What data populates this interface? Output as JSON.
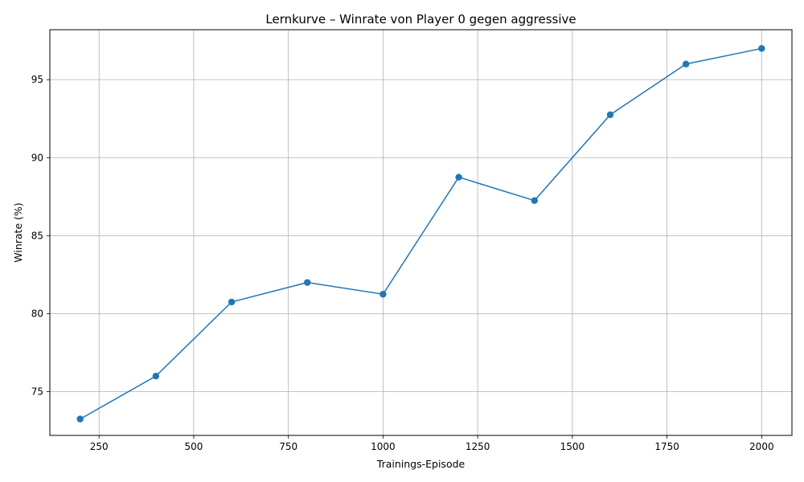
{
  "chart_data": {
    "type": "line",
    "title": "Lernkurve – Winrate von Player 0 gegen aggressive",
    "xlabel": "Trainings-Episode",
    "ylabel": "Winrate (%)",
    "xlim": [
      120,
      2080
    ],
    "ylim": [
      72.2,
      98.2
    ],
    "xticks": [
      250,
      500,
      750,
      1000,
      1250,
      1500,
      1750,
      2000
    ],
    "yticks": [
      75,
      80,
      85,
      90,
      95
    ],
    "grid": true,
    "series": [
      {
        "color": "#1f77b4",
        "marker": "circle",
        "x": [
          200,
          400,
          600,
          800,
          1000,
          1200,
          1400,
          1600,
          1800,
          2000
        ],
        "y": [
          73.25,
          76.0,
          80.75,
          82.0,
          81.25,
          88.75,
          87.25,
          92.75,
          96.0,
          97.0
        ]
      }
    ]
  }
}
